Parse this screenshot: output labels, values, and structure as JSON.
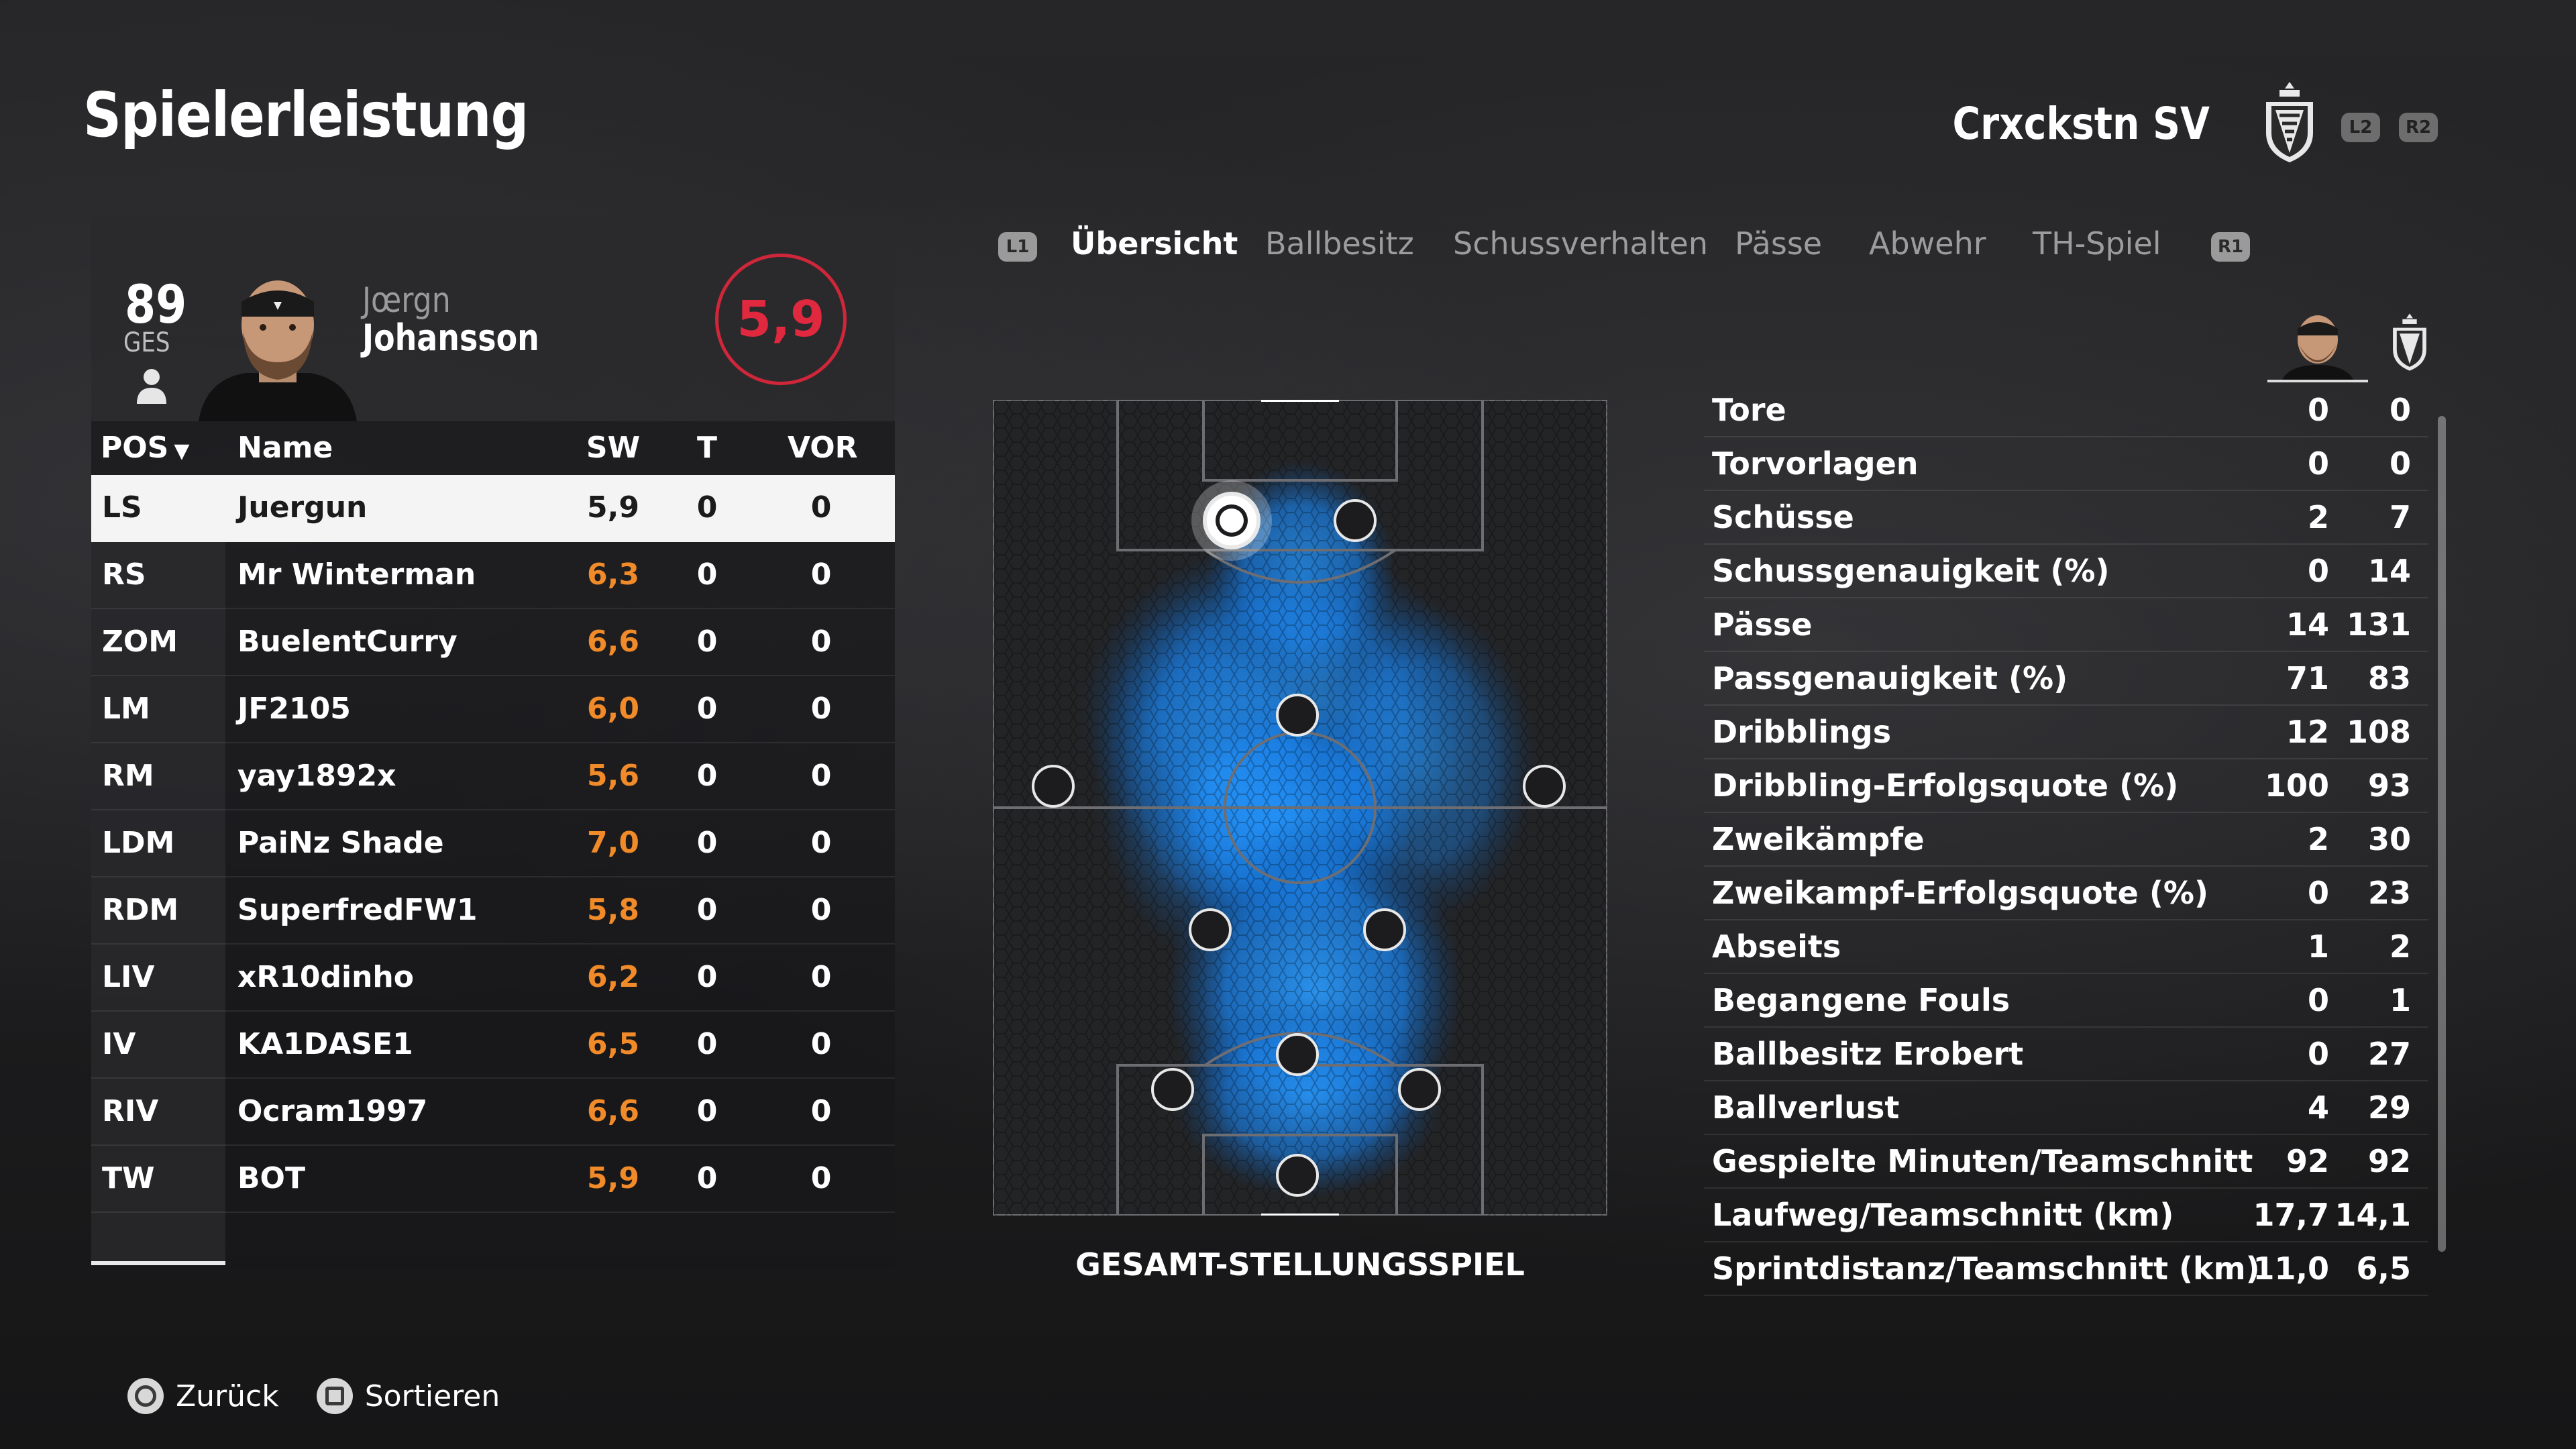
{
  "header": {
    "title": "Spielerleistung",
    "team_name": "Crxckstn SV",
    "btn_left": "L2",
    "btn_right": "R2"
  },
  "player": {
    "overall": "89",
    "overall_label": "GES",
    "first_name": "Jœrgn",
    "last_name": "Johansson",
    "rating": "5,9"
  },
  "table": {
    "columns": {
      "pos": "POS",
      "name": "Name",
      "sw": "SW",
      "t": "T",
      "vor": "VOR"
    },
    "rows": [
      {
        "pos": "LS",
        "name": "Juergun",
        "sw": "5,9",
        "t": "0",
        "vor": "0"
      },
      {
        "pos": "RS",
        "name": "Mr Winterman",
        "sw": "6,3",
        "t": "0",
        "vor": "0"
      },
      {
        "pos": "ZOM",
        "name": "BuelentCurry",
        "sw": "6,6",
        "t": "0",
        "vor": "0"
      },
      {
        "pos": "LM",
        "name": "JF2105",
        "sw": "6,0",
        "t": "0",
        "vor": "0"
      },
      {
        "pos": "RM",
        "name": "yay1892x",
        "sw": "5,6",
        "t": "0",
        "vor": "0"
      },
      {
        "pos": "LDM",
        "name": "PaiNz Shade",
        "sw": "7,0",
        "t": "0",
        "vor": "0"
      },
      {
        "pos": "RDM",
        "name": "SuperfredFW1",
        "sw": "5,8",
        "t": "0",
        "vor": "0"
      },
      {
        "pos": "LIV",
        "name": "xR10dinho",
        "sw": "6,2",
        "t": "0",
        "vor": "0"
      },
      {
        "pos": "IV",
        "name": "KA1DASE1",
        "sw": "6,5",
        "t": "0",
        "vor": "0"
      },
      {
        "pos": "RIV",
        "name": "Ocram1997",
        "sw": "6,6",
        "t": "0",
        "vor": "0"
      },
      {
        "pos": "TW",
        "name": "BOT",
        "sw": "5,9",
        "t": "0",
        "vor": "0"
      }
    ]
  },
  "tabs": {
    "btn_left": "L1",
    "btn_right": "R1",
    "items": [
      "Übersicht",
      "Ballbesitz",
      "Schussverhalten",
      "Pässe",
      "Abwehr",
      "TH-Spiel"
    ]
  },
  "pitch": {
    "caption": "GESAMT-STELLUNGSSPIEL"
  },
  "stats": [
    {
      "label": "Tore",
      "player": "0",
      "team": "0"
    },
    {
      "label": "Torvorlagen",
      "player": "0",
      "team": "0"
    },
    {
      "label": "Schüsse",
      "player": "2",
      "team": "7"
    },
    {
      "label": "Schussgenauigkeit (%)",
      "player": "0",
      "team": "14"
    },
    {
      "label": "Pässe",
      "player": "14",
      "team": "131"
    },
    {
      "label": "Passgenauigkeit (%)",
      "player": "71",
      "team": "83"
    },
    {
      "label": "Dribblings",
      "player": "12",
      "team": "108"
    },
    {
      "label": "Dribbling-Erfolgsquote (%)",
      "player": "100",
      "team": "93"
    },
    {
      "label": "Zweikämpfe",
      "player": "2",
      "team": "30"
    },
    {
      "label": "Zweikampf-Erfolgsquote (%)",
      "player": "0",
      "team": "23"
    },
    {
      "label": "Abseits",
      "player": "1",
      "team": "2"
    },
    {
      "label": "Begangene Fouls",
      "player": "0",
      "team": "1"
    },
    {
      "label": "Ballbesitz Erobert",
      "player": "0",
      "team": "27"
    },
    {
      "label": "Ballverlust",
      "player": "4",
      "team": "29"
    },
    {
      "label": "Gespielte Minuten/Teamschnitt",
      "player": "92",
      "team": "92"
    },
    {
      "label": "Laufweg/Teamschnitt (km)",
      "player": "17,7",
      "team": "14,1"
    },
    {
      "label": "Sprintdistanz/Teamschnitt (km)",
      "player": "11,0",
      "team": "6,5"
    }
  ],
  "footer": {
    "back": "Zurück",
    "sort": "Sortieren"
  },
  "colors": {
    "accent_red": "#d0263a",
    "rating_orange": "#f18a28",
    "heat_blue": "#1e8fff"
  }
}
